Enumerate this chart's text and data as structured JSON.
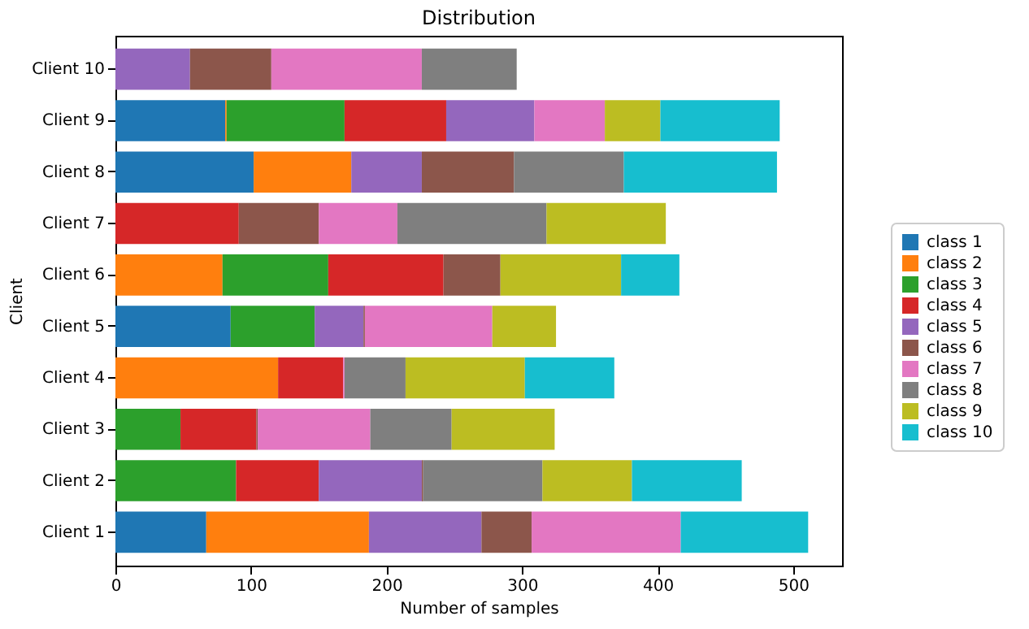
{
  "chart_data": {
    "type": "bar",
    "orientation": "horizontal",
    "stacked": true,
    "title": "Distribution",
    "xlabel": "Number of samples",
    "ylabel": "Client",
    "categories": [
      "Client 10",
      "Client 9",
      "Client 8",
      "Client 7",
      "Client 6",
      "Client 5",
      "Client 4",
      "Client 3",
      "Client 2",
      "Client 1"
    ],
    "xlim": [
      0,
      536
    ],
    "xticks": [
      0,
      100,
      200,
      300,
      400,
      500
    ],
    "grid": false,
    "legend": "right",
    "series": [
      {
        "name": "class 1",
        "color": "#1f77b4",
        "values": [
          null,
          81,
          102,
          null,
          null,
          85,
          null,
          null,
          null,
          67
        ]
      },
      {
        "name": "class 2",
        "color": "#ff7f0e",
        "values": [
          null,
          1,
          72,
          null,
          79,
          null,
          120,
          null,
          null,
          120
        ]
      },
      {
        "name": "class 3",
        "color": "#2ca02c",
        "values": [
          null,
          87,
          null,
          null,
          78,
          62,
          null,
          48,
          89,
          null
        ]
      },
      {
        "name": "class 4",
        "color": "#d62728",
        "values": [
          null,
          75,
          null,
          91,
          85,
          null,
          48,
          56,
          61,
          null
        ]
      },
      {
        "name": "class 5",
        "color": "#9467bd",
        "values": [
          55,
          65,
          52,
          null,
          null,
          36,
          null,
          null,
          76,
          83
        ]
      },
      {
        "name": "class 6",
        "color": "#8c564b",
        "values": [
          60,
          null,
          68,
          59,
          42,
          1,
          null,
          1,
          1,
          37
        ]
      },
      {
        "name": "class 7",
        "color": "#e377c2",
        "values": [
          111,
          52,
          null,
          58,
          null,
          94,
          1,
          83,
          null,
          110
        ]
      },
      {
        "name": "class 8",
        "color": "#7f7f7f",
        "values": [
          70,
          null,
          81,
          110,
          null,
          null,
          45,
          60,
          88,
          null
        ]
      },
      {
        "name": "class 9",
        "color": "#bcbd22",
        "values": [
          null,
          41,
          null,
          88,
          89,
          47,
          88,
          76,
          66,
          null
        ]
      },
      {
        "name": "class 10",
        "color": "#17becf",
        "values": [
          null,
          88,
          113,
          null,
          43,
          null,
          66,
          null,
          81,
          94
        ]
      }
    ]
  }
}
